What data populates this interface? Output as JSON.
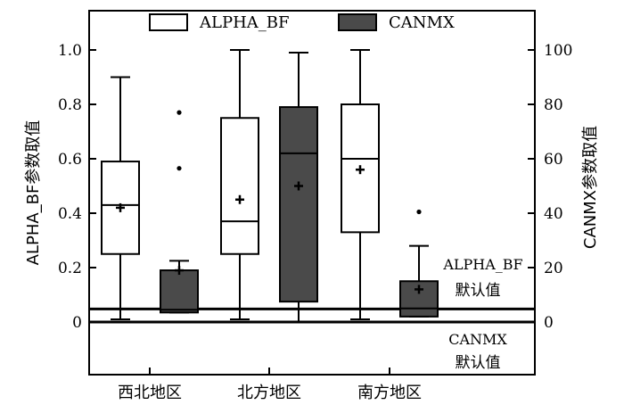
{
  "chart_data": {
    "type": "box",
    "categories": [
      "西北地区",
      "北方地区",
      "南方地区"
    ],
    "left_axis": {
      "label": "ALPHA_BF参数取值",
      "ylim": [
        -0.2,
        1.1
      ],
      "ticks": [
        "0",
        "0.2",
        "0.4",
        "0.6",
        "0.8",
        "1.0"
      ],
      "tick_values": [
        0,
        0.2,
        0.4,
        0.6,
        0.8,
        1.0
      ]
    },
    "right_axis": {
      "label": "CANMX参数取值",
      "ylim": [
        -20,
        110
      ],
      "ticks": [
        "0",
        "20",
        "40",
        "60",
        "80",
        "100"
      ],
      "tick_values": [
        0,
        20,
        40,
        60,
        80,
        100
      ]
    },
    "series": [
      {
        "name": "ALPHA_BF",
        "axis": "left",
        "fill": "#ffffff",
        "boxes": [
          {
            "category": "西北地区",
            "min": 0.01,
            "q1": 0.25,
            "median": 0.43,
            "q3": 0.59,
            "max": 0.9,
            "mean": 0.42,
            "outliers": []
          },
          {
            "category": "北方地区",
            "min": 0.01,
            "q1": 0.25,
            "median": 0.37,
            "q3": 0.75,
            "max": 1.0,
            "mean": 0.45,
            "outliers": []
          },
          {
            "category": "南方地区",
            "min": 0.01,
            "q1": 0.33,
            "median": 0.6,
            "q3": 0.8,
            "max": 1.0,
            "mean": 0.56,
            "outliers": []
          }
        ]
      },
      {
        "name": "CANMX",
        "axis": "right",
        "fill": "#4a4a4a",
        "boxes": [
          {
            "category": "西北地区",
            "min": 3.5,
            "q1": 3.5,
            "median": 4.5,
            "q3": 19,
            "max": 22.5,
            "mean": 19,
            "outliers": [
              56.5,
              77
            ]
          },
          {
            "category": "北方地区",
            "min": 0,
            "q1": 7.5,
            "median": 62,
            "q3": 79,
            "max": 99,
            "mean": 50,
            "outliers": []
          },
          {
            "category": "南方地区",
            "min": 2,
            "q1": 2,
            "median": 5,
            "q3": 15,
            "max": 28,
            "mean": 12,
            "outliers": [
              40.5
            ]
          }
        ]
      }
    ],
    "reference_lines": [
      {
        "label_line1": "ALPHA_BF",
        "label_line2": "默认值",
        "value": 0.048,
        "axis": "left"
      },
      {
        "label_line1": "CANMX",
        "label_line2": "默认值",
        "value": 0,
        "axis": "right"
      }
    ],
    "legend": {
      "position": "top"
    },
    "grid": false
  }
}
